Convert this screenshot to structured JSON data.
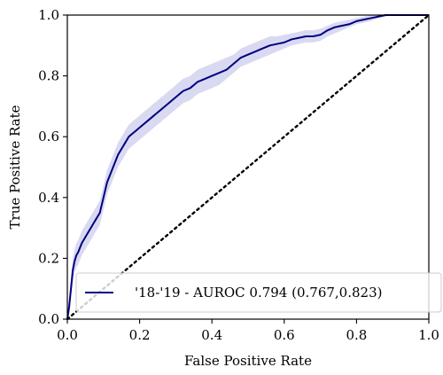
{
  "chart_data": {
    "type": "line",
    "xlabel": "False Positive Rate",
    "ylabel": "True Positive Rate",
    "xlim": [
      0.0,
      1.0
    ],
    "ylim": [
      0.0,
      1.0
    ],
    "x_ticks": [
      "0.0",
      "0.2",
      "0.4",
      "0.6",
      "0.8",
      "1.0"
    ],
    "y_ticks": [
      "0.0",
      "0.2",
      "0.4",
      "0.6",
      "0.8",
      "1.0"
    ],
    "grid": false,
    "legend_position": "lower-right",
    "series": [
      {
        "name": "'18-'19 - AUROC 0.794 (0.767,0.823)",
        "color": "#000080",
        "band_color": "#d9d9f2",
        "x": [
          0.0,
          0.005,
          0.01,
          0.015,
          0.02,
          0.025,
          0.03,
          0.04,
          0.05,
          0.06,
          0.07,
          0.08,
          0.09,
          0.1,
          0.11,
          0.12,
          0.13,
          0.14,
          0.15,
          0.16,
          0.17,
          0.18,
          0.19,
          0.2,
          0.22,
          0.24,
          0.26,
          0.28,
          0.3,
          0.32,
          0.34,
          0.36,
          0.38,
          0.4,
          0.42,
          0.44,
          0.46,
          0.48,
          0.5,
          0.52,
          0.54,
          0.56,
          0.58,
          0.6,
          0.62,
          0.64,
          0.66,
          0.68,
          0.7,
          0.72,
          0.74,
          0.76,
          0.78,
          0.8,
          0.82,
          0.84,
          0.86,
          0.88,
          0.9,
          0.95,
          1.0
        ],
        "y": [
          0.0,
          0.04,
          0.1,
          0.16,
          0.19,
          0.21,
          0.22,
          0.25,
          0.27,
          0.29,
          0.31,
          0.33,
          0.35,
          0.4,
          0.45,
          0.48,
          0.51,
          0.54,
          0.56,
          0.58,
          0.6,
          0.61,
          0.62,
          0.63,
          0.65,
          0.67,
          0.69,
          0.71,
          0.73,
          0.75,
          0.76,
          0.78,
          0.79,
          0.8,
          0.81,
          0.82,
          0.84,
          0.86,
          0.87,
          0.88,
          0.89,
          0.9,
          0.905,
          0.91,
          0.92,
          0.925,
          0.93,
          0.93,
          0.935,
          0.95,
          0.96,
          0.965,
          0.97,
          0.98,
          0.985,
          0.99,
          0.995,
          1.0,
          1.0,
          1.0,
          1.0
        ],
        "y_lower": [
          0.0,
          0.02,
          0.07,
          0.12,
          0.15,
          0.17,
          0.18,
          0.21,
          0.23,
          0.25,
          0.27,
          0.29,
          0.31,
          0.36,
          0.41,
          0.44,
          0.47,
          0.5,
          0.52,
          0.54,
          0.56,
          0.57,
          0.58,
          0.59,
          0.61,
          0.63,
          0.65,
          0.67,
          0.69,
          0.71,
          0.72,
          0.74,
          0.75,
          0.76,
          0.77,
          0.79,
          0.81,
          0.83,
          0.84,
          0.85,
          0.86,
          0.87,
          0.88,
          0.89,
          0.9,
          0.905,
          0.91,
          0.91,
          0.915,
          0.93,
          0.94,
          0.95,
          0.96,
          0.97,
          0.975,
          0.98,
          0.99,
          0.995,
          1.0,
          1.0,
          1.0
        ],
        "y_upper": [
          0.0,
          0.06,
          0.13,
          0.2,
          0.23,
          0.25,
          0.26,
          0.29,
          0.31,
          0.33,
          0.35,
          0.37,
          0.39,
          0.44,
          0.49,
          0.52,
          0.55,
          0.58,
          0.6,
          0.62,
          0.64,
          0.65,
          0.66,
          0.67,
          0.69,
          0.71,
          0.73,
          0.75,
          0.77,
          0.79,
          0.8,
          0.82,
          0.83,
          0.84,
          0.85,
          0.86,
          0.87,
          0.89,
          0.9,
          0.91,
          0.92,
          0.93,
          0.93,
          0.935,
          0.94,
          0.945,
          0.95,
          0.95,
          0.955,
          0.965,
          0.975,
          0.98,
          0.985,
          0.99,
          0.995,
          1.0,
          1.0,
          1.0,
          1.0,
          1.0,
          1.0
        ]
      }
    ],
    "reference_line": {
      "x": [
        0.0,
        1.0
      ],
      "y": [
        0.0,
        1.0
      ],
      "style": "dotted",
      "color": "#000000"
    }
  }
}
